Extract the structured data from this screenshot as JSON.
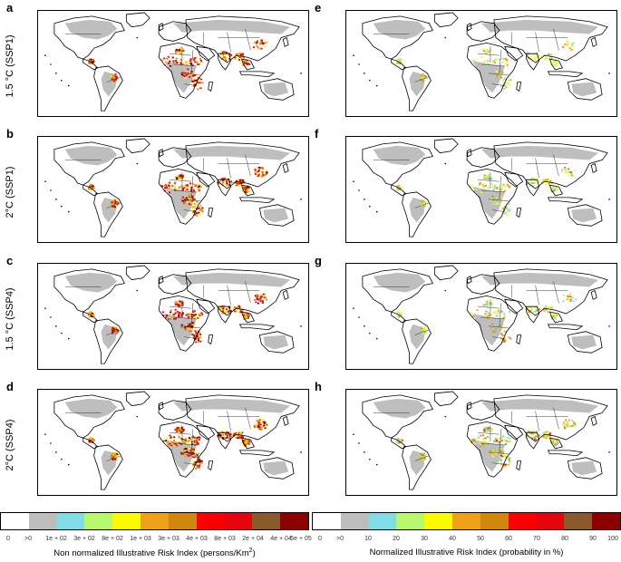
{
  "panels": [
    {
      "letter": "a",
      "row_label": "1.5 °C (SSP1)",
      "intensity": 0.55,
      "normalized": false
    },
    {
      "letter": "b",
      "row_label": "2°C (SSP1)",
      "intensity": 0.75,
      "normalized": false
    },
    {
      "letter": "c",
      "row_label": "1.5 °C (SSP4)",
      "intensity": 0.7,
      "normalized": false
    },
    {
      "letter": "d",
      "row_label": "2°C (SSP4)",
      "intensity": 0.95,
      "normalized": false
    },
    {
      "letter": "e",
      "row_label": "",
      "intensity": 0.35,
      "normalized": true
    },
    {
      "letter": "f",
      "row_label": "",
      "intensity": 0.45,
      "normalized": true
    },
    {
      "letter": "g",
      "row_label": "",
      "intensity": 0.4,
      "normalized": true
    },
    {
      "letter": "h",
      "row_label": "",
      "intensity": 0.65,
      "normalized": true
    }
  ],
  "legend_left": {
    "colors": [
      "#ffffff",
      "#bebebe",
      "#7fdde8",
      "#b8f66e",
      "#fcfc00",
      "#f0a11a",
      "#d1870c",
      "#fa0000",
      "#e3040e",
      "#8b5a2b",
      "#8b0000"
    ],
    "ticks": [
      "0",
      ">0",
      "1e + 02",
      "3e + 02",
      "8e + 02",
      "1e + 03",
      "3e + 03",
      "4e + 03",
      "8e + 03",
      "2e + 04",
      "4e + 04",
      "5e + 05"
    ],
    "caption_main": "Non normalized Illustrative Risk Index (persons/Km",
    "caption_sup": "2",
    "caption_end": ")"
  },
  "legend_right": {
    "colors": [
      "#ffffff",
      "#bebebe",
      "#7fdde8",
      "#b8f66e",
      "#fcfc00",
      "#f0a11a",
      "#d1870c",
      "#fa0000",
      "#e3040e",
      "#8b5a2b",
      "#8b0000"
    ],
    "ticks": [
      "0",
      ">0",
      "10",
      "20",
      "30",
      "40",
      "50",
      "60",
      "70",
      "80",
      "90",
      "100"
    ],
    "caption_main": "Normalized Illustrative Risk Index (probability in %)",
    "caption_sup": "",
    "caption_end": ""
  }
}
